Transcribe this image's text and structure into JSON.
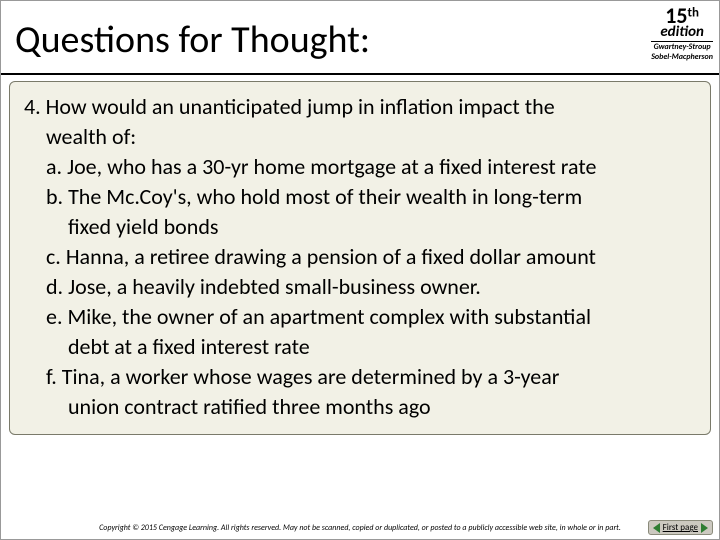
{
  "header": {
    "title": "Questions for Thought:",
    "edition_number": "15",
    "edition_suffix": "th",
    "edition_word": "edition",
    "authors_line1": "Gwartney-Stroup",
    "authors_line2": "Sobel-Macpherson"
  },
  "content": {
    "stem1": "4. How would an unanticipated jump in inflation impact the",
    "stem2": "wealth of:",
    "a": "a. Joe, who has a 30-yr home mortgage at a fixed interest rate",
    "b1": "b. The Mc.Coy's, who hold most of their wealth in long-term",
    "b2": "fixed yield bonds",
    "c": "c. Hanna, a retiree drawing a pension of a fixed dollar amount",
    "d": "d. Jose, a heavily indebted small-business owner.",
    "e1": "e. Mike, the owner of an apartment complex with substantial",
    "e2": "debt at a fixed interest rate",
    "f1": "f. Tina, a worker whose wages are determined by a 3-year",
    "f2": "union contract ratified three months ago"
  },
  "footer": {
    "copyright": "Copyright © 2015 Cengage Learning. All rights reserved. May not be scanned, copied or duplicated, or posted to a publicly accessible web site, in whole or in part.",
    "first_page_label": "First page"
  },
  "styling": {
    "background_color": "#ffffff",
    "content_bg": "#f2f1e6",
    "content_border": "#7a7a6a",
    "title_fontsize": 38,
    "body_fontsize": 22,
    "line_height": 30,
    "arrow_color": "#2e7d32"
  }
}
